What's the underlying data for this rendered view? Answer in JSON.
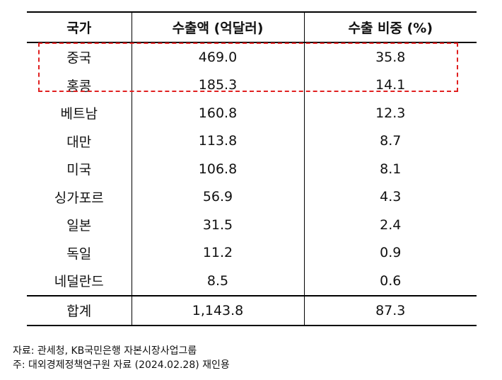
{
  "table": {
    "headers": [
      "국가",
      "수출액 (억달러)",
      "수출 비중 (%)"
    ],
    "rows": [
      {
        "country": "중국",
        "amount": "469.0",
        "share": "35.8"
      },
      {
        "country": "홍콩",
        "amount": "185.3",
        "share": "14.1"
      },
      {
        "country": "베트남",
        "amount": "160.8",
        "share": "12.3"
      },
      {
        "country": "대만",
        "amount": "113.8",
        "share": "8.7"
      },
      {
        "country": "미국",
        "amount": "106.8",
        "share": "8.1"
      },
      {
        "country": "싱가포르",
        "amount": "56.9",
        "share": "4.3"
      },
      {
        "country": "일본",
        "amount": "31.5",
        "share": "2.4"
      },
      {
        "country": "독일",
        "amount": "11.2",
        "share": "0.9"
      },
      {
        "country": "네덜란드",
        "amount": "8.5",
        "share": "0.6"
      }
    ],
    "total": {
      "country": "합계",
      "amount": "1,143.8",
      "share": "87.3"
    }
  },
  "highlight": {
    "color": "#e02020",
    "rows": [
      "중국",
      "홍콩"
    ]
  },
  "notes": {
    "source": "자료: 관세청, KB국민은행 자본시장사업그룹",
    "note": "주: 대외경제정책연구원 자료 (2024.02.28) 재인용"
  }
}
